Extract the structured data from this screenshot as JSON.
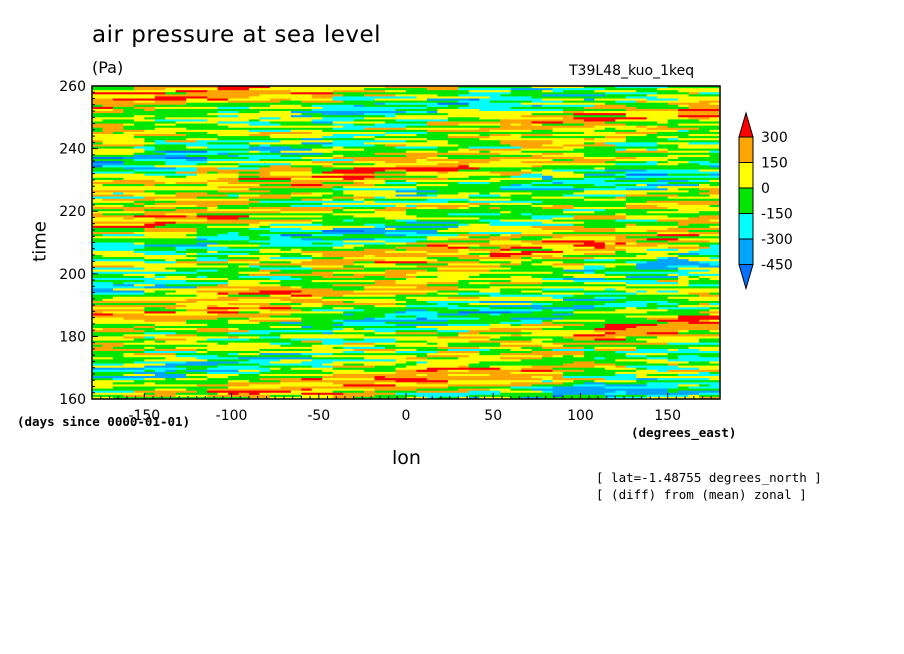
{
  "chart_data": {
    "type": "heatmap",
    "title": "air pressure at sea level",
    "units": "(Pa)",
    "run_name": "T39L48_kuo_1keq",
    "xlabel": "lon",
    "ylabel": "time",
    "x_units": "(degrees_east)",
    "y_units": "(days since 0000-01-01)",
    "xlim": [
      -180,
      180
    ],
    "ylim": [
      160,
      260
    ],
    "x_ticks": [
      -150,
      -100,
      -50,
      0,
      50,
      100,
      150
    ],
    "y_ticks": [
      160,
      180,
      200,
      220,
      240,
      260
    ],
    "colorbar": {
      "levels": [
        -450,
        -300,
        -150,
        0,
        150,
        300
      ],
      "level_labels": [
        "-450",
        "-300",
        "-150",
        "0",
        "150",
        "300"
      ],
      "colors": [
        "#0072ff",
        "#00a5ff",
        "#00ffff",
        "#00e600",
        "#ffff00",
        "#ffa500",
        "#ff0000"
      ],
      "extend": "both"
    },
    "notes": [
      "[ lat=-1.48755 degrees_north ]",
      "[ (diff) from (mean) zonal ]"
    ]
  }
}
